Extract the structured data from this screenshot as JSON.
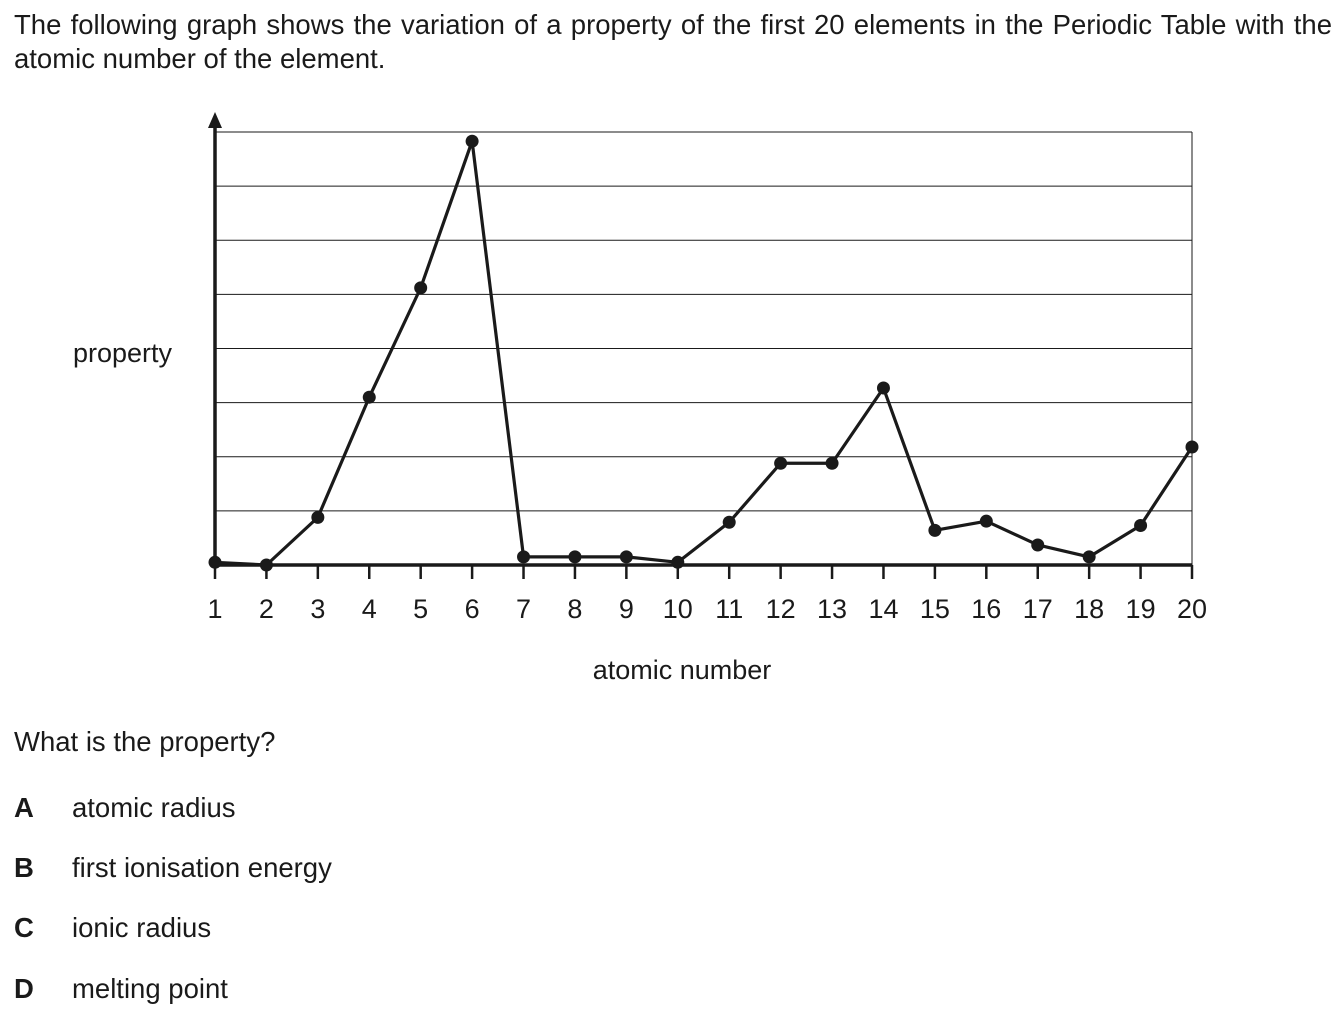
{
  "intro": "The following graph shows the variation of a property of the first 20 elements in the Periodic Table with the atomic number of the element.",
  "question": "What is the property?",
  "options": [
    {
      "letter": "A",
      "text": "atomic radius"
    },
    {
      "letter": "B",
      "text": "first ionisation energy"
    },
    {
      "letter": "C",
      "text": "ionic radius"
    },
    {
      "letter": "D",
      "text": "melting point"
    }
  ],
  "chart_data": {
    "type": "line",
    "ylabel": "property",
    "xlabel": "atomic number",
    "x": [
      1,
      2,
      3,
      4,
      5,
      6,
      7,
      8,
      9,
      10,
      11,
      12,
      13,
      14,
      15,
      16,
      17,
      18,
      19,
      20
    ],
    "values": [
      0.05,
      0.0,
      0.88,
      3.1,
      5.12,
      7.83,
      0.15,
      0.15,
      0.15,
      0.05,
      0.79,
      1.88,
      1.88,
      3.27,
      0.64,
      0.81,
      0.37,
      0.15,
      0.73,
      2.18
    ],
    "ylim": [
      0,
      8
    ],
    "grid": "horizontal",
    "ticks_y": false
  }
}
